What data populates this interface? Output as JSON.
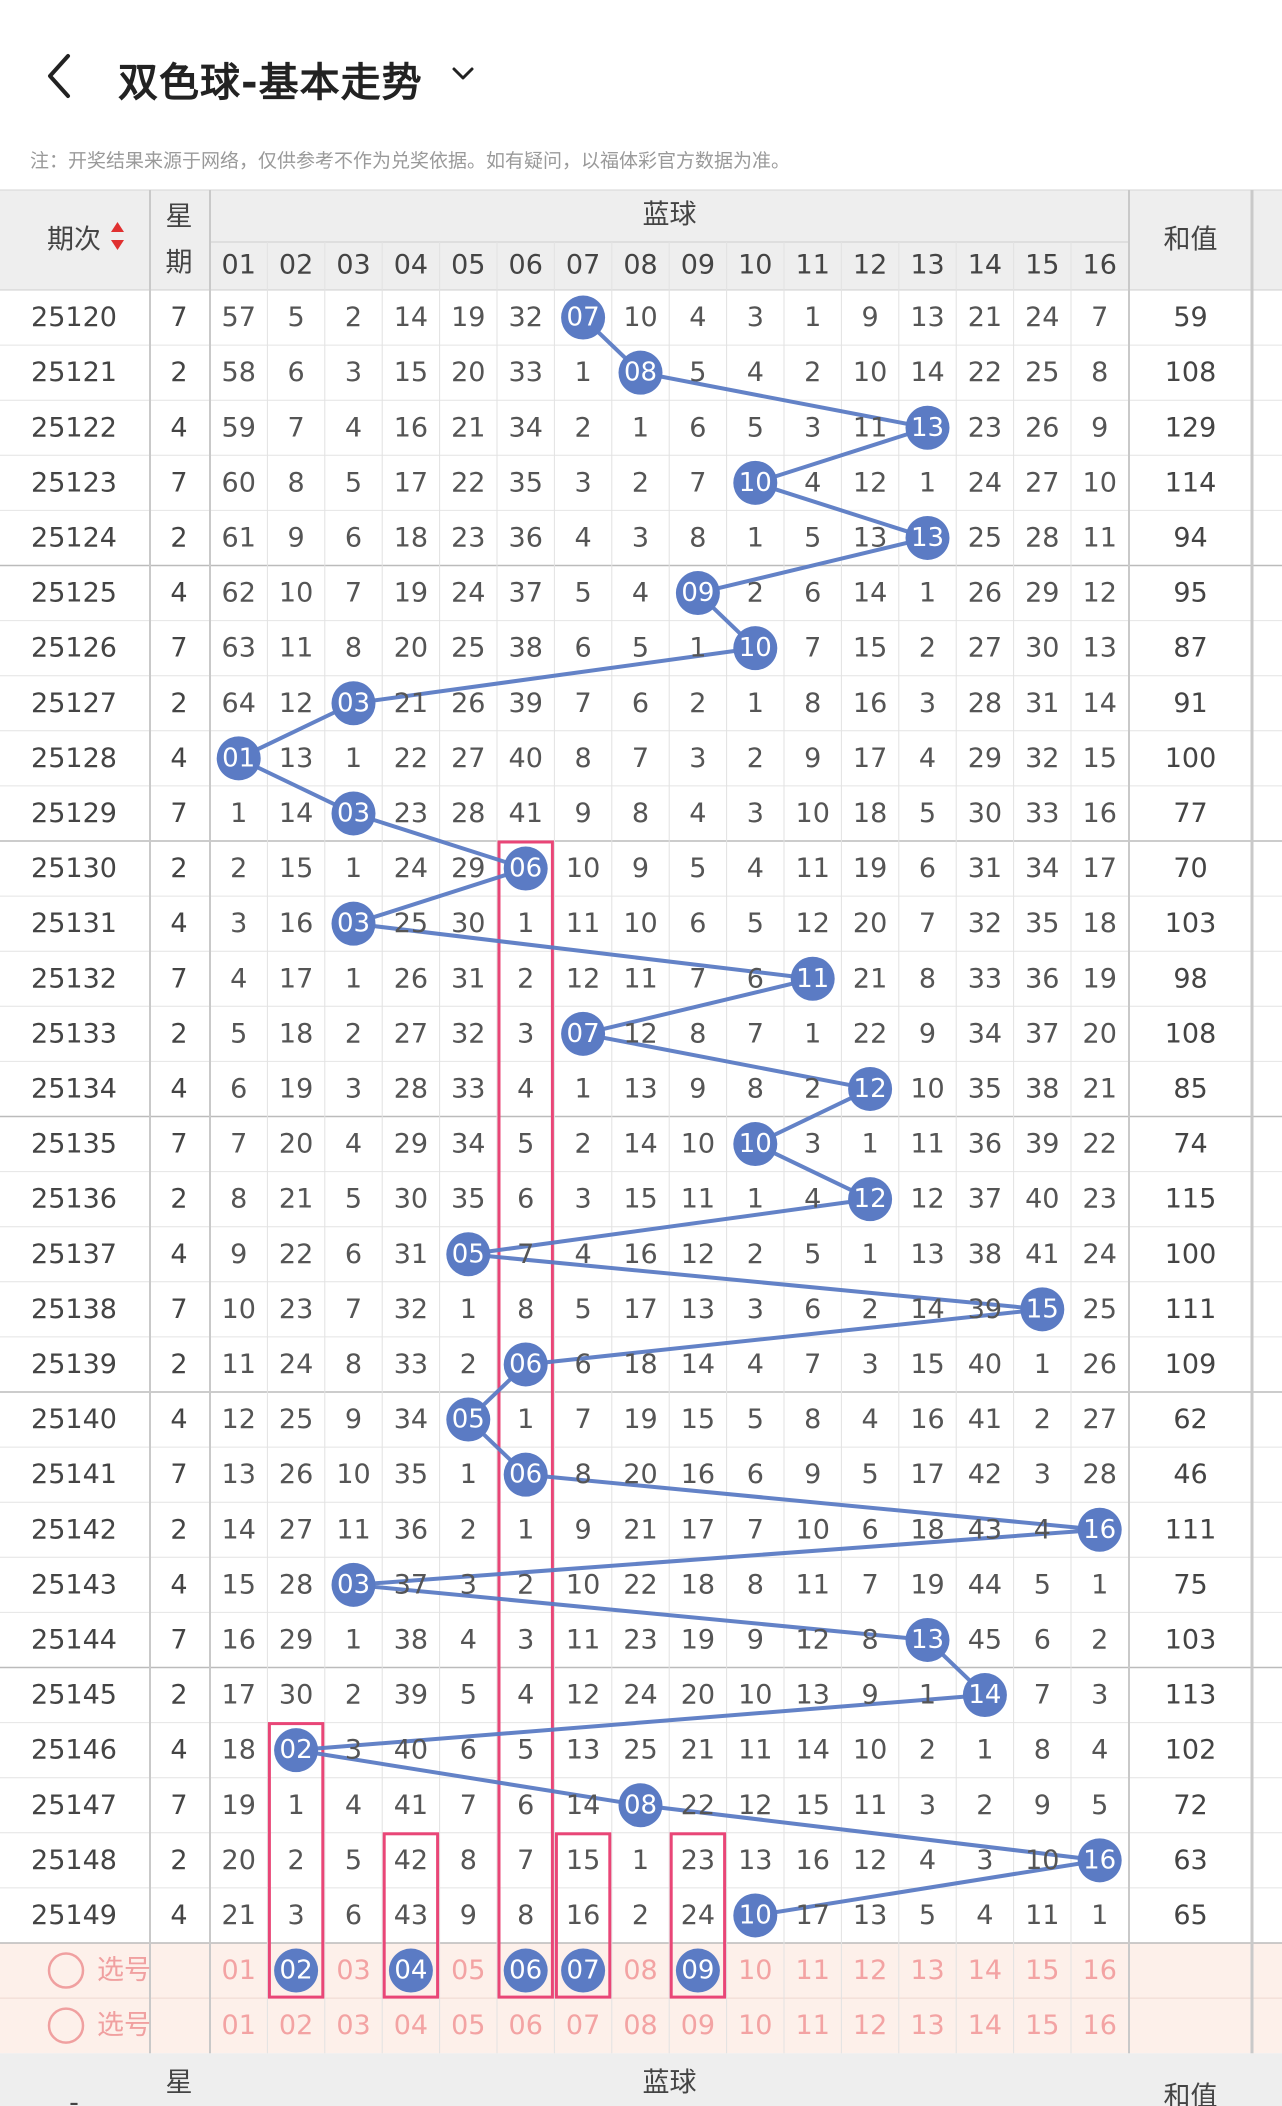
{
  "header": {
    "back_icon": "chevron-left-icon",
    "title": "双色球-基本走势",
    "title_dropdown_icon": "chevron-down-icon",
    "notice": "注：开奖结果来源于网络，仅供参考不作为兑奖依据。如有疑问，以福体彩官方数据为准。"
  },
  "colors": {
    "ball": "#5b7bc4",
    "trend_line": "#5b7bc4",
    "header_bg": "#eeeeee",
    "select_row_bg": "#fdf0ea",
    "select_number": "#f3a3a3",
    "highlight_box": "#e94677",
    "sort_up": "#e03030",
    "sort_down": "#e03030"
  },
  "table": {
    "col_issue": "期次",
    "col_week": "星期",
    "col_group": "蓝球",
    "col_sum": "和值",
    "numbers": [
      "01",
      "02",
      "03",
      "04",
      "05",
      "06",
      "07",
      "08",
      "09",
      "10",
      "11",
      "12",
      "13",
      "14",
      "15",
      "16"
    ],
    "sort_icon": "sort-up-down-icon",
    "rows": [
      {
        "issue": "25120",
        "week": "7",
        "hit": "07",
        "cells": [
          "57",
          "5",
          "2",
          "14",
          "19",
          "32",
          "07",
          "10",
          "4",
          "3",
          "1",
          "9",
          "13",
          "21",
          "24",
          "7"
        ],
        "sum": "59"
      },
      {
        "issue": "25121",
        "week": "2",
        "hit": "08",
        "cells": [
          "58",
          "6",
          "3",
          "15",
          "20",
          "33",
          "1",
          "08",
          "5",
          "4",
          "2",
          "10",
          "14",
          "22",
          "25",
          "8"
        ],
        "sum": "108"
      },
      {
        "issue": "25122",
        "week": "4",
        "hit": "13",
        "cells": [
          "59",
          "7",
          "4",
          "16",
          "21",
          "34",
          "2",
          "1",
          "6",
          "5",
          "3",
          "11",
          "13",
          "23",
          "26",
          "9"
        ],
        "sum": "129"
      },
      {
        "issue": "25123",
        "week": "7",
        "hit": "10",
        "cells": [
          "60",
          "8",
          "5",
          "17",
          "22",
          "35",
          "3",
          "2",
          "7",
          "10",
          "4",
          "12",
          "1",
          "24",
          "27",
          "10"
        ],
        "sum": "114"
      },
      {
        "issue": "25124",
        "week": "2",
        "hit": "13",
        "cells": [
          "61",
          "9",
          "6",
          "18",
          "23",
          "36",
          "4",
          "3",
          "8",
          "1",
          "5",
          "13",
          "13",
          "25",
          "28",
          "11"
        ],
        "sum": "94"
      },
      {
        "issue": "25125",
        "week": "4",
        "hit": "09",
        "cells": [
          "62",
          "10",
          "7",
          "19",
          "24",
          "37",
          "5",
          "4",
          "09",
          "2",
          "6",
          "14",
          "1",
          "26",
          "29",
          "12"
        ],
        "sum": "95"
      },
      {
        "issue": "25126",
        "week": "7",
        "hit": "10",
        "cells": [
          "63",
          "11",
          "8",
          "20",
          "25",
          "38",
          "6",
          "5",
          "1",
          "10",
          "7",
          "15",
          "2",
          "27",
          "30",
          "13"
        ],
        "sum": "87"
      },
      {
        "issue": "25127",
        "week": "2",
        "hit": "03",
        "cells": [
          "64",
          "12",
          "03",
          "21",
          "26",
          "39",
          "7",
          "6",
          "2",
          "1",
          "8",
          "16",
          "3",
          "28",
          "31",
          "14"
        ],
        "sum": "91"
      },
      {
        "issue": "25128",
        "week": "4",
        "hit": "01",
        "cells": [
          "01",
          "13",
          "1",
          "22",
          "27",
          "40",
          "8",
          "7",
          "3",
          "2",
          "9",
          "17",
          "4",
          "29",
          "32",
          "15"
        ],
        "sum": "100"
      },
      {
        "issue": "25129",
        "week": "7",
        "hit": "03",
        "cells": [
          "1",
          "14",
          "03",
          "23",
          "28",
          "41",
          "9",
          "8",
          "4",
          "3",
          "10",
          "18",
          "5",
          "30",
          "33",
          "16"
        ],
        "sum": "77"
      },
      {
        "issue": "25130",
        "week": "2",
        "hit": "06",
        "cells": [
          "2",
          "15",
          "1",
          "24",
          "29",
          "06",
          "10",
          "9",
          "5",
          "4",
          "11",
          "19",
          "6",
          "31",
          "34",
          "17"
        ],
        "sum": "70"
      },
      {
        "issue": "25131",
        "week": "4",
        "hit": "03",
        "cells": [
          "3",
          "16",
          "03",
          "25",
          "30",
          "1",
          "11",
          "10",
          "6",
          "5",
          "12",
          "20",
          "7",
          "32",
          "35",
          "18"
        ],
        "sum": "103"
      },
      {
        "issue": "25132",
        "week": "7",
        "hit": "11",
        "cells": [
          "4",
          "17",
          "1",
          "26",
          "31",
          "2",
          "12",
          "11",
          "7",
          "6",
          "11",
          "21",
          "8",
          "33",
          "36",
          "19"
        ],
        "sum": "98"
      },
      {
        "issue": "25133",
        "week": "2",
        "hit": "07",
        "cells": [
          "5",
          "18",
          "2",
          "27",
          "32",
          "3",
          "07",
          "12",
          "8",
          "7",
          "1",
          "22",
          "9",
          "34",
          "37",
          "20"
        ],
        "sum": "108"
      },
      {
        "issue": "25134",
        "week": "4",
        "hit": "12",
        "cells": [
          "6",
          "19",
          "3",
          "28",
          "33",
          "4",
          "1",
          "13",
          "9",
          "8",
          "2",
          "12",
          "10",
          "35",
          "38",
          "21"
        ],
        "sum": "85"
      },
      {
        "issue": "25135",
        "week": "7",
        "hit": "10",
        "cells": [
          "7",
          "20",
          "4",
          "29",
          "34",
          "5",
          "2",
          "14",
          "10",
          "10",
          "3",
          "1",
          "11",
          "36",
          "39",
          "22"
        ],
        "sum": "74"
      },
      {
        "issue": "25136",
        "week": "2",
        "hit": "12",
        "cells": [
          "8",
          "21",
          "5",
          "30",
          "35",
          "6",
          "3",
          "15",
          "11",
          "1",
          "4",
          "12",
          "12",
          "37",
          "40",
          "23"
        ],
        "sum": "115"
      },
      {
        "issue": "25137",
        "week": "4",
        "hit": "05",
        "cells": [
          "9",
          "22",
          "6",
          "31",
          "05",
          "7",
          "4",
          "16",
          "12",
          "2",
          "5",
          "1",
          "13",
          "38",
          "41",
          "24"
        ],
        "sum": "100"
      },
      {
        "issue": "25138",
        "week": "7",
        "hit": "15",
        "cells": [
          "10",
          "23",
          "7",
          "32",
          "1",
          "8",
          "5",
          "17",
          "13",
          "3",
          "6",
          "2",
          "14",
          "39",
          "15",
          "25"
        ],
        "sum": "111"
      },
      {
        "issue": "25139",
        "week": "2",
        "hit": "06",
        "cells": [
          "11",
          "24",
          "8",
          "33",
          "2",
          "06",
          "6",
          "18",
          "14",
          "4",
          "7",
          "3",
          "15",
          "40",
          "1",
          "26"
        ],
        "sum": "109"
      },
      {
        "issue": "25140",
        "week": "4",
        "hit": "05",
        "cells": [
          "12",
          "25",
          "9",
          "34",
          "05",
          "1",
          "7",
          "19",
          "15",
          "5",
          "8",
          "4",
          "16",
          "41",
          "2",
          "27"
        ],
        "sum": "62"
      },
      {
        "issue": "25141",
        "week": "7",
        "hit": "06",
        "cells": [
          "13",
          "26",
          "10",
          "35",
          "1",
          "06",
          "8",
          "20",
          "16",
          "6",
          "9",
          "5",
          "17",
          "42",
          "3",
          "28"
        ],
        "sum": "46"
      },
      {
        "issue": "25142",
        "week": "2",
        "hit": "16",
        "cells": [
          "14",
          "27",
          "11",
          "36",
          "2",
          "1",
          "9",
          "21",
          "17",
          "7",
          "10",
          "6",
          "18",
          "43",
          "4",
          "16"
        ],
        "sum": "111"
      },
      {
        "issue": "25143",
        "week": "4",
        "hit": "03",
        "cells": [
          "15",
          "28",
          "03",
          "37",
          "3",
          "2",
          "10",
          "22",
          "18",
          "8",
          "11",
          "7",
          "19",
          "44",
          "5",
          "1"
        ],
        "sum": "75"
      },
      {
        "issue": "25144",
        "week": "7",
        "hit": "13",
        "cells": [
          "16",
          "29",
          "1",
          "38",
          "4",
          "3",
          "11",
          "23",
          "19",
          "9",
          "12",
          "8",
          "13",
          "45",
          "6",
          "2"
        ],
        "sum": "103"
      },
      {
        "issue": "25145",
        "week": "2",
        "hit": "14",
        "cells": [
          "17",
          "30",
          "2",
          "39",
          "5",
          "4",
          "12",
          "24",
          "20",
          "10",
          "13",
          "9",
          "1",
          "14",
          "7",
          "3"
        ],
        "sum": "113"
      },
      {
        "issue": "25146",
        "week": "4",
        "hit": "02",
        "cells": [
          "18",
          "02",
          "3",
          "40",
          "6",
          "5",
          "13",
          "25",
          "21",
          "11",
          "14",
          "10",
          "2",
          "1",
          "8",
          "4"
        ],
        "sum": "102"
      },
      {
        "issue": "25147",
        "week": "7",
        "hit": "08",
        "cells": [
          "19",
          "1",
          "4",
          "41",
          "7",
          "6",
          "14",
          "08",
          "22",
          "12",
          "15",
          "11",
          "3",
          "2",
          "9",
          "5"
        ],
        "sum": "72"
      },
      {
        "issue": "25148",
        "week": "2",
        "hit": "16",
        "cells": [
          "20",
          "2",
          "5",
          "42",
          "8",
          "7",
          "15",
          "1",
          "23",
          "13",
          "16",
          "12",
          "4",
          "3",
          "10",
          "16"
        ],
        "sum": "63"
      },
      {
        "issue": "25149",
        "week": "4",
        "hit": "10",
        "cells": [
          "21",
          "3",
          "6",
          "43",
          "9",
          "8",
          "16",
          "2",
          "24",
          "10",
          "17",
          "13",
          "5",
          "4",
          "11",
          "1"
        ],
        "sum": "65"
      }
    ],
    "select_rows": [
      {
        "label": "选号",
        "radio_icon": "radio-circle-icon",
        "selected": [
          "02",
          "04",
          "06",
          "07",
          "09"
        ]
      },
      {
        "label": "选号",
        "radio_icon": "radio-circle-icon",
        "selected": []
      }
    ],
    "highlight_cols": [
      "02",
      "04",
      "06",
      "07",
      "09"
    ],
    "footer": {
      "issue": "-",
      "week": "星",
      "group": "蓝球",
      "sum": "和值"
    }
  }
}
